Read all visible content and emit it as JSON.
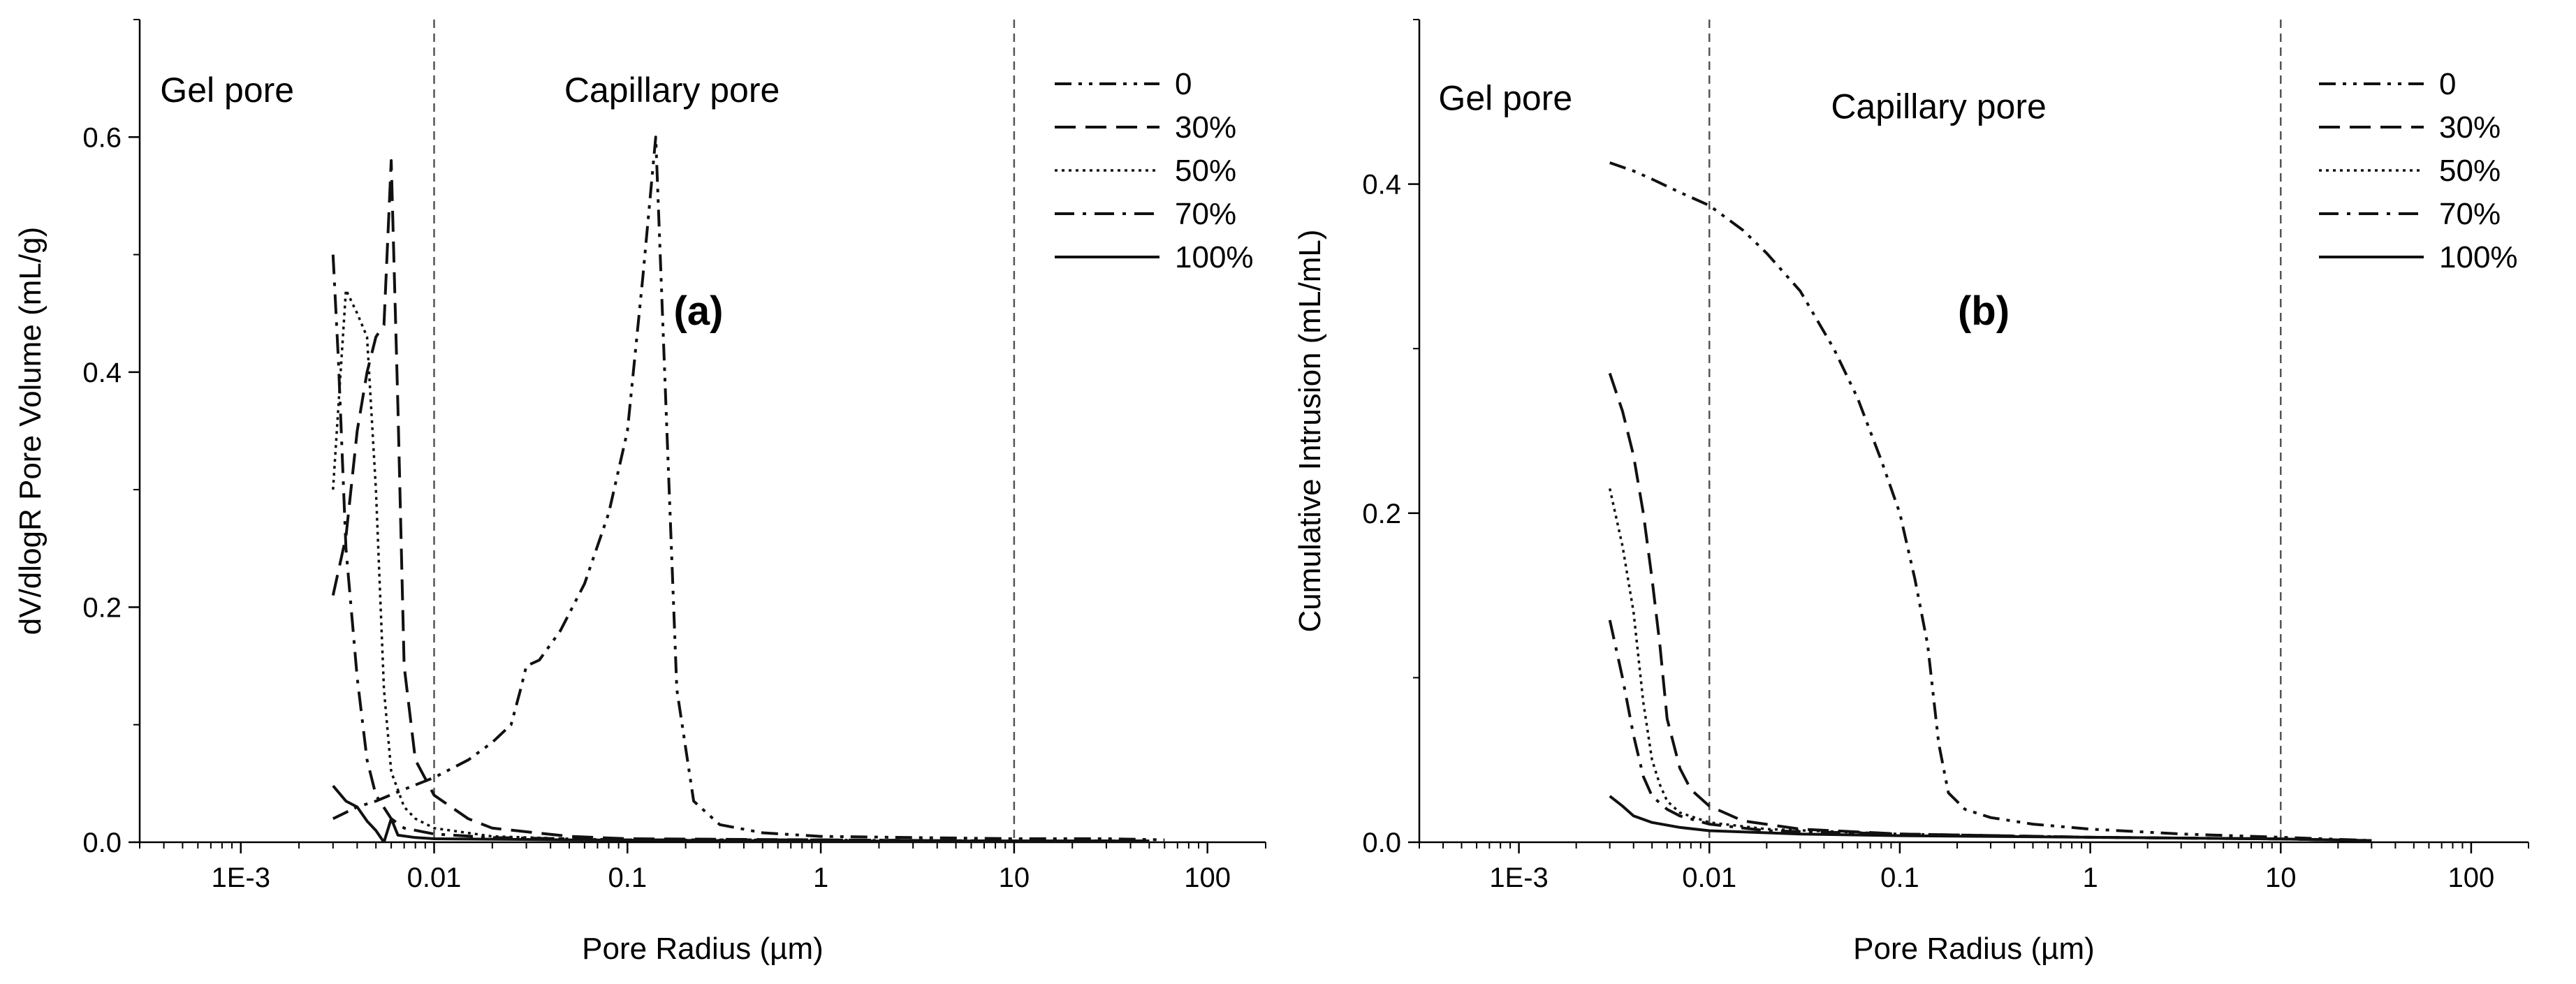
{
  "chart_data": [
    {
      "type": "line",
      "panel_label": "(a)",
      "xlabel": "Pore Radius (µm)",
      "ylabel": "dV/dlogR Pore Volume (mL/g)",
      "xscale": "log",
      "xlim": [
        0.0003,
        200
      ],
      "ylim": [
        0,
        0.7
      ],
      "xticks": [
        {
          "v": 0.001,
          "label": "1E-3"
        },
        {
          "v": 0.01,
          "label": "0.01"
        },
        {
          "v": 0.1,
          "label": "0.1"
        },
        {
          "v": 1,
          "label": "1"
        },
        {
          "v": 10,
          "label": "10"
        },
        {
          "v": 100,
          "label": "100"
        }
      ],
      "yticks": [
        {
          "v": 0,
          "label": "0.0"
        },
        {
          "v": 0.2,
          "label": "0.2"
        },
        {
          "v": 0.4,
          "label": "0.4"
        },
        {
          "v": 0.6,
          "label": "0.6"
        }
      ],
      "vlines": [
        0.01,
        10
      ],
      "regions": [
        {
          "label": "Gel pore",
          "x": 0.00085,
          "y": 0.63
        },
        {
          "label": "Capillary pore",
          "x": 0.17,
          "y": 0.63
        }
      ],
      "legend_position": "top-right",
      "series": [
        {
          "name": "0",
          "dash": "dashdotdot",
          "points": [
            [
              0.003,
              0.02
            ],
            [
              0.004,
              0.03
            ],
            [
              0.005,
              0.035
            ],
            [
              0.007,
              0.045
            ],
            [
              0.01,
              0.055
            ],
            [
              0.015,
              0.07
            ],
            [
              0.02,
              0.085
            ],
            [
              0.025,
              0.1
            ],
            [
              0.028,
              0.13
            ],
            [
              0.03,
              0.15
            ],
            [
              0.035,
              0.155
            ],
            [
              0.045,
              0.18
            ],
            [
              0.06,
              0.22
            ],
            [
              0.08,
              0.28
            ],
            [
              0.1,
              0.35
            ],
            [
              0.12,
              0.48
            ],
            [
              0.14,
              0.6
            ],
            [
              0.16,
              0.35
            ],
            [
              0.18,
              0.13
            ],
            [
              0.22,
              0.035
            ],
            [
              0.3,
              0.015
            ],
            [
              0.5,
              0.008
            ],
            [
              1,
              0.005
            ],
            [
              3,
              0.004
            ],
            [
              10,
              0.003
            ],
            [
              30,
              0.003
            ],
            [
              60,
              0.002
            ]
          ]
        },
        {
          "name": "30%",
          "dash": "dash",
          "points": [
            [
              0.003,
              0.21
            ],
            [
              0.0035,
              0.26
            ],
            [
              0.004,
              0.35
            ],
            [
              0.0045,
              0.4
            ],
            [
              0.005,
              0.43
            ],
            [
              0.0055,
              0.44
            ],
            [
              0.006,
              0.58
            ],
            [
              0.0065,
              0.37
            ],
            [
              0.007,
              0.15
            ],
            [
              0.008,
              0.07
            ],
            [
              0.01,
              0.04
            ],
            [
              0.015,
              0.02
            ],
            [
              0.02,
              0.012
            ],
            [
              0.05,
              0.005
            ],
            [
              0.1,
              0.003
            ],
            [
              1,
              0.002
            ],
            [
              10,
              0.001
            ],
            [
              50,
              0.001
            ]
          ]
        },
        {
          "name": "50%",
          "dash": "dot",
          "points": [
            [
              0.003,
              0.3
            ],
            [
              0.0035,
              0.47
            ],
            [
              0.004,
              0.45
            ],
            [
              0.0045,
              0.43
            ],
            [
              0.005,
              0.3
            ],
            [
              0.0055,
              0.13
            ],
            [
              0.006,
              0.06
            ],
            [
              0.007,
              0.03
            ],
            [
              0.008,
              0.02
            ],
            [
              0.01,
              0.012
            ],
            [
              0.02,
              0.005
            ],
            [
              0.05,
              0.003
            ],
            [
              0.1,
              0.002
            ],
            [
              1,
              0.002
            ],
            [
              10,
              0.001
            ],
            [
              50,
              0.001
            ]
          ]
        },
        {
          "name": "70%",
          "dash": "dashdot",
          "points": [
            [
              0.003,
              0.5
            ],
            [
              0.0032,
              0.41
            ],
            [
              0.0035,
              0.25
            ],
            [
              0.004,
              0.14
            ],
            [
              0.0045,
              0.07
            ],
            [
              0.005,
              0.04
            ],
            [
              0.006,
              0.02
            ],
            [
              0.007,
              0.012
            ],
            [
              0.01,
              0.007
            ],
            [
              0.02,
              0.004
            ],
            [
              0.1,
              0.002
            ],
            [
              1,
              0.002
            ],
            [
              10,
              0.001
            ],
            [
              50,
              0.001
            ]
          ]
        },
        {
          "name": "100%",
          "dash": "solid",
          "points": [
            [
              0.003,
              0.048
            ],
            [
              0.0035,
              0.035
            ],
            [
              0.004,
              0.03
            ],
            [
              0.0045,
              0.018
            ],
            [
              0.005,
              0.01
            ],
            [
              0.0055,
              0.0
            ],
            [
              0.006,
              0.02
            ],
            [
              0.0065,
              0.006
            ],
            [
              0.008,
              0.004
            ],
            [
              0.01,
              0.003
            ],
            [
              0.05,
              0.002
            ],
            [
              1,
              0.001
            ],
            [
              10,
              0.001
            ],
            [
              50,
              0.001
            ]
          ]
        }
      ]
    },
    {
      "type": "line",
      "panel_label": "(b)",
      "xlabel": "Pore Radius (µm)",
      "ylabel": "Cumulative Intrusion (mL/mL)",
      "xscale": "log",
      "xlim": [
        0.0003,
        200
      ],
      "ylim": [
        0,
        0.5
      ],
      "xticks": [
        {
          "v": 0.001,
          "label": "1E-3"
        },
        {
          "v": 0.01,
          "label": "0.01"
        },
        {
          "v": 0.1,
          "label": "0.1"
        },
        {
          "v": 1,
          "label": "1"
        },
        {
          "v": 10,
          "label": "10"
        },
        {
          "v": 100,
          "label": "100"
        }
      ],
      "yticks": [
        {
          "v": 0,
          "label": "0.0"
        },
        {
          "v": 0.2,
          "label": "0.2"
        },
        {
          "v": 0.4,
          "label": "0.4"
        }
      ],
      "vlines": [
        0.01,
        10
      ],
      "regions": [
        {
          "label": "Gel pore",
          "x": 0.00085,
          "y": 0.445
        },
        {
          "label": "Capillary pore",
          "x": 0.16,
          "y": 0.44
        }
      ],
      "legend_position": "top-right",
      "series": [
        {
          "name": "0",
          "dash": "dashdotdot",
          "points": [
            [
              0.003,
              0.413
            ],
            [
              0.004,
              0.408
            ],
            [
              0.005,
              0.403
            ],
            [
              0.007,
              0.395
            ],
            [
              0.01,
              0.387
            ],
            [
              0.015,
              0.372
            ],
            [
              0.02,
              0.358
            ],
            [
              0.03,
              0.335
            ],
            [
              0.045,
              0.3
            ],
            [
              0.06,
              0.27
            ],
            [
              0.08,
              0.232
            ],
            [
              0.1,
              0.2
            ],
            [
              0.12,
              0.16
            ],
            [
              0.14,
              0.12
            ],
            [
              0.16,
              0.06
            ],
            [
              0.18,
              0.03
            ],
            [
              0.22,
              0.02
            ],
            [
              0.3,
              0.015
            ],
            [
              0.5,
              0.011
            ],
            [
              1,
              0.008
            ],
            [
              3,
              0.005
            ],
            [
              10,
              0.003
            ],
            [
              30,
              0.001
            ]
          ]
        },
        {
          "name": "30%",
          "dash": "dash",
          "points": [
            [
              0.003,
              0.285
            ],
            [
              0.0035,
              0.262
            ],
            [
              0.004,
              0.235
            ],
            [
              0.0045,
              0.2
            ],
            [
              0.005,
              0.16
            ],
            [
              0.0055,
              0.12
            ],
            [
              0.006,
              0.075
            ],
            [
              0.007,
              0.045
            ],
            [
              0.008,
              0.032
            ],
            [
              0.01,
              0.022
            ],
            [
              0.015,
              0.013
            ],
            [
              0.03,
              0.008
            ],
            [
              0.1,
              0.005
            ],
            [
              1,
              0.003
            ],
            [
              10,
              0.002
            ],
            [
              30,
              0.001
            ]
          ]
        },
        {
          "name": "50%",
          "dash": "dot",
          "points": [
            [
              0.003,
              0.215
            ],
            [
              0.0035,
              0.18
            ],
            [
              0.004,
              0.14
            ],
            [
              0.0045,
              0.085
            ],
            [
              0.005,
              0.05
            ],
            [
              0.0055,
              0.035
            ],
            [
              0.006,
              0.025
            ],
            [
              0.007,
              0.018
            ],
            [
              0.01,
              0.012
            ],
            [
              0.02,
              0.008
            ],
            [
              0.1,
              0.005
            ],
            [
              1,
              0.003
            ],
            [
              10,
              0.002
            ],
            [
              30,
              0.001
            ]
          ]
        },
        {
          "name": "70%",
          "dash": "dashdot",
          "points": [
            [
              0.003,
              0.135
            ],
            [
              0.0035,
              0.1
            ],
            [
              0.004,
              0.065
            ],
            [
              0.0045,
              0.04
            ],
            [
              0.005,
              0.028
            ],
            [
              0.006,
              0.02
            ],
            [
              0.007,
              0.016
            ],
            [
              0.01,
              0.011
            ],
            [
              0.02,
              0.007
            ],
            [
              0.1,
              0.005
            ],
            [
              1,
              0.003
            ],
            [
              10,
              0.002
            ],
            [
              30,
              0.001
            ]
          ]
        },
        {
          "name": "100%",
          "dash": "solid",
          "points": [
            [
              0.003,
              0.028
            ],
            [
              0.0035,
              0.022
            ],
            [
              0.004,
              0.016
            ],
            [
              0.005,
              0.012
            ],
            [
              0.007,
              0.009
            ],
            [
              0.01,
              0.007
            ],
            [
              0.03,
              0.005
            ],
            [
              0.1,
              0.004
            ],
            [
              1,
              0.003
            ],
            [
              10,
              0.002
            ],
            [
              30,
              0.001
            ]
          ]
        }
      ]
    }
  ]
}
